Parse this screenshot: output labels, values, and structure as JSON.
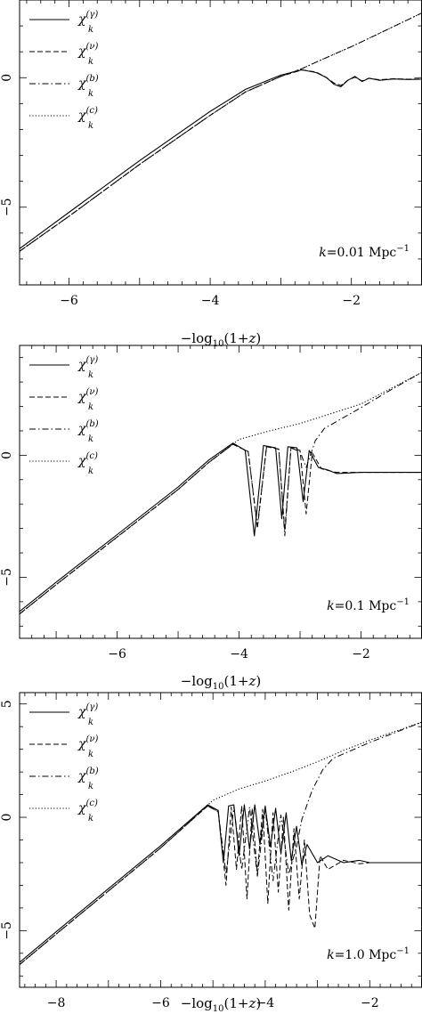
{
  "chart_data": [
    {
      "type": "line",
      "title": "",
      "xlabel": "−log10(1+z)",
      "ylabel": "",
      "xlim": [
        -6.7,
        -1.0
      ],
      "ylim": [
        -8.0,
        3.0
      ],
      "xticks": [
        -6,
        -4,
        -2
      ],
      "yticks": [
        0,
        -5
      ],
      "annotation": "k=0.01 Mpc−1",
      "legend": {
        "placement": "top-left",
        "entries": [
          {
            "base": "χ",
            "sup": "(γ)",
            "sub": "k",
            "style": "solid"
          },
          {
            "base": "χ",
            "sup": "(ν)",
            "sub": "k",
            "style": "dashed"
          },
          {
            "base": "χ",
            "sup": "(b)",
            "sub": "k",
            "style": "dashdot"
          },
          {
            "base": "χ",
            "sup": "(c)",
            "sub": "k",
            "style": "dotted"
          }
        ]
      },
      "series": [
        {
          "style": "solid",
          "points": [
            [
              -6.7,
              -6.6
            ],
            [
              -6.0,
              -5.2
            ],
            [
              -5.0,
              -3.2
            ],
            [
              -4.0,
              -1.3
            ],
            [
              -3.5,
              -0.45
            ],
            [
              -3.0,
              0.1
            ],
            [
              -2.7,
              0.3
            ],
            [
              -2.5,
              0.2
            ],
            [
              -2.35,
              0.0
            ],
            [
              -2.25,
              -0.25
            ],
            [
              -2.15,
              -0.35
            ],
            [
              -2.05,
              -0.1
            ],
            [
              -1.95,
              0.05
            ],
            [
              -1.85,
              -0.15
            ],
            [
              -1.75,
              -0.02
            ],
            [
              -1.6,
              -0.1
            ],
            [
              -1.4,
              -0.05
            ],
            [
              -1.2,
              -0.07
            ],
            [
              -1.0,
              -0.06
            ]
          ]
        },
        {
          "style": "dashed",
          "points": [
            [
              -6.7,
              -6.7
            ],
            [
              -6.0,
              -5.35
            ],
            [
              -5.0,
              -3.35
            ],
            [
              -4.0,
              -1.45
            ],
            [
              -3.5,
              -0.55
            ],
            [
              -3.0,
              0.05
            ],
            [
              -2.7,
              0.3
            ],
            [
              -2.5,
              0.22
            ],
            [
              -2.35,
              0.0
            ],
            [
              -2.25,
              -0.2
            ],
            [
              -2.15,
              -0.3
            ],
            [
              -2.05,
              -0.1
            ],
            [
              -1.95,
              0.02
            ],
            [
              -1.85,
              -0.12
            ],
            [
              -1.75,
              -0.02
            ],
            [
              -1.6,
              -0.08
            ],
            [
              -1.4,
              -0.04
            ],
            [
              -1.2,
              -0.06
            ],
            [
              -1.0,
              -0.05
            ]
          ]
        },
        {
          "style": "dashdot",
          "points": [
            [
              -6.7,
              -6.7
            ],
            [
              -6.0,
              -5.35
            ],
            [
              -5.0,
              -3.35
            ],
            [
              -4.0,
              -1.45
            ],
            [
              -3.5,
              -0.55
            ],
            [
              -3.0,
              0.05
            ],
            [
              -2.7,
              0.35
            ],
            [
              -2.5,
              0.6
            ],
            [
              -2.0,
              1.2
            ],
            [
              -1.5,
              1.85
            ],
            [
              -1.0,
              2.5
            ]
          ]
        },
        {
          "style": "dotted",
          "points": [
            [
              -6.7,
              -6.7
            ],
            [
              -6.0,
              -5.35
            ],
            [
              -5.0,
              -3.35
            ],
            [
              -4.0,
              -1.45
            ],
            [
              -3.5,
              -0.55
            ],
            [
              -3.0,
              0.05
            ],
            [
              -2.7,
              0.35
            ],
            [
              -2.5,
              0.6
            ],
            [
              -2.0,
              1.2
            ],
            [
              -1.5,
              1.85
            ],
            [
              -1.0,
              2.5
            ]
          ]
        }
      ]
    },
    {
      "type": "line",
      "title": "",
      "xlabel": "−log10(1+z)",
      "ylabel": "",
      "xlim": [
        -7.6,
        -1.0
      ],
      "ylim": [
        -7.5,
        4.5
      ],
      "xticks": [
        -6,
        -4,
        -2
      ],
      "yticks": [
        0,
        -5
      ],
      "annotation": "k=0.1 Mpc−1",
      "legend": {
        "placement": "top-left",
        "entries": [
          {
            "base": "χ",
            "sup": "(γ)",
            "sub": "k",
            "style": "solid"
          },
          {
            "base": "χ",
            "sup": "(ν)",
            "sub": "k",
            "style": "dashed"
          },
          {
            "base": "χ",
            "sup": "(b)",
            "sub": "k",
            "style": "dashdot"
          },
          {
            "base": "χ",
            "sup": "(c)",
            "sub": "k",
            "style": "dotted"
          }
        ]
      },
      "series": [
        {
          "style": "solid",
          "points": [
            [
              -7.6,
              -6.4
            ],
            [
              -7.0,
              -5.2
            ],
            [
              -6.0,
              -3.25
            ],
            [
              -5.0,
              -1.3
            ],
            [
              -4.5,
              -0.2
            ],
            [
              -4.1,
              0.5
            ],
            [
              -3.9,
              0.2
            ],
            [
              -3.75,
              -3.3
            ],
            [
              -3.6,
              0.4
            ],
            [
              -3.4,
              0.3
            ],
            [
              -3.3,
              -2.6
            ],
            [
              -3.2,
              0.35
            ],
            [
              -3.05,
              0.3
            ],
            [
              -2.95,
              -1.9
            ],
            [
              -2.85,
              0.2
            ],
            [
              -2.7,
              -0.5
            ],
            [
              -2.55,
              -0.6
            ],
            [
              -2.4,
              -0.75
            ],
            [
              -2.0,
              -0.7
            ],
            [
              -1.0,
              -0.7
            ]
          ]
        },
        {
          "style": "dashed",
          "points": [
            [
              -7.6,
              -6.5
            ],
            [
              -7.0,
              -5.3
            ],
            [
              -6.0,
              -3.35
            ],
            [
              -5.0,
              -1.4
            ],
            [
              -4.5,
              -0.3
            ],
            [
              -4.1,
              0.45
            ],
            [
              -3.85,
              0.15
            ],
            [
              -3.7,
              -3.0
            ],
            [
              -3.55,
              0.35
            ],
            [
              -3.35,
              0.25
            ],
            [
              -3.25,
              -3.1
            ],
            [
              -3.15,
              0.3
            ],
            [
              -3.0,
              0.2
            ],
            [
              -2.9,
              -2.4
            ],
            [
              -2.8,
              0.1
            ],
            [
              -2.65,
              -0.55
            ],
            [
              -2.5,
              -0.65
            ],
            [
              -2.4,
              -0.7
            ],
            [
              -2.0,
              -0.7
            ],
            [
              -1.0,
              -0.7
            ]
          ]
        },
        {
          "style": "dashdot",
          "points": [
            [
              -7.6,
              -6.5
            ],
            [
              -7.0,
              -5.3
            ],
            [
              -6.0,
              -3.35
            ],
            [
              -5.0,
              -1.4
            ],
            [
              -4.5,
              -0.3
            ],
            [
              -4.1,
              0.45
            ],
            [
              -3.85,
              0.15
            ],
            [
              -3.7,
              -2.9
            ],
            [
              -3.55,
              0.35
            ],
            [
              -3.35,
              0.25
            ],
            [
              -3.25,
              -3.3
            ],
            [
              -3.15,
              0.3
            ],
            [
              -3.0,
              0.15
            ],
            [
              -2.9,
              -0.5
            ],
            [
              -2.75,
              0.6
            ],
            [
              -2.6,
              1.1
            ],
            [
              -2.0,
              1.95
            ],
            [
              -1.5,
              2.7
            ],
            [
              -1.0,
              3.4
            ]
          ]
        },
        {
          "style": "dotted",
          "points": [
            [
              -7.6,
              -6.5
            ],
            [
              -7.0,
              -5.3
            ],
            [
              -6.0,
              -3.35
            ],
            [
              -5.0,
              -1.4
            ],
            [
              -4.5,
              -0.3
            ],
            [
              -4.0,
              0.65
            ],
            [
              -3.5,
              1.0
            ],
            [
              -3.0,
              1.3
            ],
            [
              -2.5,
              1.7
            ],
            [
              -2.0,
              2.1
            ],
            [
              -1.5,
              2.75
            ],
            [
              -1.0,
              3.4
            ]
          ]
        }
      ]
    },
    {
      "type": "line",
      "title": "",
      "xlabel": "−log10(1+z)",
      "ylabel": "",
      "xlim": [
        -8.7,
        -1.0
      ],
      "ylim": [
        -7.5,
        5.5
      ],
      "xticks": [
        -8,
        -6,
        -4,
        -2
      ],
      "yticks": [
        5,
        0,
        -5
      ],
      "annotation": "k=1.0 Mpc−1",
      "legend": {
        "placement": "top-left",
        "entries": [
          {
            "base": "χ",
            "sup": "(γ)",
            "sub": "k",
            "style": "solid"
          },
          {
            "base": "χ",
            "sup": "(ν)",
            "sub": "k",
            "style": "dashed"
          },
          {
            "base": "χ",
            "sup": "(b)",
            "sub": "k",
            "style": "dashdot"
          },
          {
            "base": "χ",
            "sup": "(c)",
            "sub": "k",
            "style": "dotted"
          }
        ]
      },
      "series": [
        {
          "style": "solid",
          "points": [
            [
              -8.7,
              -6.4
            ],
            [
              -8.0,
              -5.05
            ],
            [
              -7.0,
              -3.15
            ],
            [
              -6.0,
              -1.25
            ],
            [
              -5.3,
              0.15
            ],
            [
              -5.1,
              0.55
            ],
            [
              -4.9,
              0.3
            ],
            [
              -4.8,
              -2.0
            ],
            [
              -4.7,
              0.5
            ],
            [
              -4.6,
              0.55
            ],
            [
              -4.5,
              -1.7
            ],
            [
              -4.4,
              0.55
            ],
            [
              -4.3,
              -1.4
            ],
            [
              -4.2,
              0.55
            ],
            [
              -4.1,
              -1.2
            ],
            [
              -4.0,
              0.5
            ],
            [
              -3.9,
              -1.3
            ],
            [
              -3.8,
              0.4
            ],
            [
              -3.7,
              -1.6
            ],
            [
              -3.6,
              0.2
            ],
            [
              -3.5,
              -1.9
            ],
            [
              -3.4,
              -0.4
            ],
            [
              -3.3,
              -2.1
            ],
            [
              -3.2,
              -1.2
            ],
            [
              -3.0,
              -2.0
            ],
            [
              -2.8,
              -1.7
            ],
            [
              -2.5,
              -2.0
            ],
            [
              -2.2,
              -1.9
            ],
            [
              -2.0,
              -2.0
            ],
            [
              -1.5,
              -2.0
            ],
            [
              -1.0,
              -2.0
            ]
          ]
        },
        {
          "style": "dashed",
          "points": [
            [
              -8.7,
              -6.5
            ],
            [
              -8.0,
              -5.15
            ],
            [
              -7.0,
              -3.25
            ],
            [
              -6.0,
              -1.35
            ],
            [
              -5.3,
              0.1
            ],
            [
              -5.1,
              0.5
            ],
            [
              -4.9,
              0.25
            ],
            [
              -4.75,
              -3.0
            ],
            [
              -4.65,
              0.45
            ],
            [
              -4.55,
              -2.3
            ],
            [
              -4.45,
              0.5
            ],
            [
              -4.35,
              -3.6
            ],
            [
              -4.25,
              0.4
            ],
            [
              -4.15,
              -2.5
            ],
            [
              -4.05,
              0.35
            ],
            [
              -3.95,
              -3.8
            ],
            [
              -3.85,
              0.2
            ],
            [
              -3.75,
              -3.3
            ],
            [
              -3.65,
              0.0
            ],
            [
              -3.55,
              -4.1
            ],
            [
              -3.45,
              -0.5
            ],
            [
              -3.35,
              -3.6
            ],
            [
              -3.25,
              -1.0
            ],
            [
              -3.15,
              -4.3
            ],
            [
              -3.05,
              -4.9
            ],
            [
              -2.95,
              -1.7
            ],
            [
              -2.8,
              -2.3
            ],
            [
              -2.5,
              -1.9
            ],
            [
              -2.2,
              -2.05
            ],
            [
              -2.0,
              -2.0
            ],
            [
              -1.0,
              -2.0
            ]
          ]
        },
        {
          "style": "dashdot",
          "points": [
            [
              -8.7,
              -6.5
            ],
            [
              -8.0,
              -5.15
            ],
            [
              -7.0,
              -3.25
            ],
            [
              -6.0,
              -1.35
            ],
            [
              -5.3,
              0.1
            ],
            [
              -5.1,
              0.5
            ],
            [
              -4.9,
              0.25
            ],
            [
              -4.75,
              -2.5
            ],
            [
              -4.6,
              0.45
            ],
            [
              -4.45,
              -2.3
            ],
            [
              -4.3,
              0.45
            ],
            [
              -4.15,
              -2.6
            ],
            [
              -4.0,
              0.4
            ],
            [
              -3.85,
              -2.8
            ],
            [
              -3.7,
              0.1
            ],
            [
              -3.55,
              -2.5
            ],
            [
              -3.4,
              -1.3
            ],
            [
              -3.3,
              -0.1
            ],
            [
              -3.1,
              1.2
            ],
            [
              -2.9,
              2.1
            ],
            [
              -2.7,
              2.6
            ],
            [
              -2.3,
              3.0
            ],
            [
              -2.0,
              3.3
            ],
            [
              -1.5,
              3.75
            ],
            [
              -1.0,
              4.2
            ]
          ]
        },
        {
          "style": "dotted",
          "points": [
            [
              -8.7,
              -6.5
            ],
            [
              -8.0,
              -5.15
            ],
            [
              -7.0,
              -3.25
            ],
            [
              -6.0,
              -1.35
            ],
            [
              -5.3,
              0.1
            ],
            [
              -5.0,
              0.75
            ],
            [
              -4.5,
              1.25
            ],
            [
              -4.0,
              1.6
            ],
            [
              -3.5,
              2.0
            ],
            [
              -3.0,
              2.45
            ],
            [
              -2.5,
              2.95
            ],
            [
              -2.0,
              3.4
            ],
            [
              -1.5,
              3.8
            ],
            [
              -1.0,
              4.2
            ]
          ]
        }
      ]
    }
  ]
}
